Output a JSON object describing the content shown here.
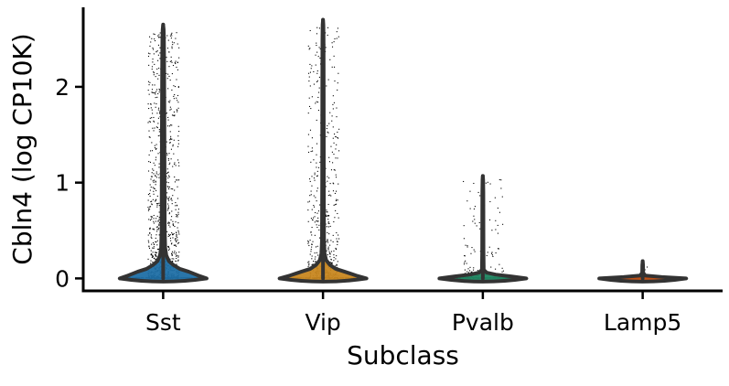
{
  "chart_data": {
    "type": "violin",
    "title": "",
    "xlabel": "Subclass",
    "ylabel": "Cbln4 (log CP10K)",
    "ylim": [
      -0.13,
      2.83
    ],
    "yticks": [
      0,
      1,
      2
    ],
    "grid": false,
    "legend": "none",
    "categories": [
      "Sst",
      "Vip",
      "Pvalb",
      "Lamp5"
    ],
    "colors": [
      "#1f6fa5",
      "#c88720",
      "#1e8560",
      "#c24d10"
    ],
    "series": [
      {
        "category": "Sst",
        "max": 2.65,
        "profile": [
          [
            0,
            0.68
          ],
          [
            0.03,
            0.55
          ],
          [
            0.07,
            0.4
          ],
          [
            0.1,
            0.26
          ],
          [
            0.14,
            0.16
          ],
          [
            0.18,
            0.09
          ],
          [
            0.24,
            0.05
          ],
          [
            0.32,
            0.032
          ],
          [
            0.5,
            0.025
          ],
          [
            1.0,
            0.022
          ],
          [
            1.5,
            0.02
          ],
          [
            2.0,
            0.017
          ],
          [
            2.3,
            0.015
          ],
          [
            2.5,
            0.012
          ],
          [
            2.6,
            0.008
          ],
          [
            2.65,
            0.0
          ]
        ]
      },
      {
        "category": "Vip",
        "max": 2.7,
        "profile": [
          [
            0,
            0.68
          ],
          [
            0.03,
            0.52
          ],
          [
            0.07,
            0.34
          ],
          [
            0.1,
            0.2
          ],
          [
            0.14,
            0.11
          ],
          [
            0.19,
            0.05
          ],
          [
            0.26,
            0.025
          ],
          [
            0.4,
            0.016
          ],
          [
            1.0,
            0.013
          ],
          [
            1.5,
            0.012
          ],
          [
            2.0,
            0.011
          ],
          [
            2.5,
            0.009
          ],
          [
            2.65,
            0.006
          ],
          [
            2.7,
            0.0
          ]
        ]
      },
      {
        "category": "Pvalb",
        "max": 1.07,
        "profile": [
          [
            0,
            0.68
          ],
          [
            0.02,
            0.45
          ],
          [
            0.04,
            0.2
          ],
          [
            0.06,
            0.06
          ],
          [
            0.09,
            0.014
          ],
          [
            0.3,
            0.01
          ],
          [
            0.6,
            0.009
          ],
          [
            0.9,
            0.008
          ],
          [
            1.03,
            0.005
          ],
          [
            1.07,
            0.0
          ]
        ]
      },
      {
        "category": "Lamp5",
        "max": 0.18,
        "profile": [
          [
            0,
            0.68
          ],
          [
            0.015,
            0.3
          ],
          [
            0.03,
            0.04
          ],
          [
            0.06,
            0.008
          ],
          [
            0.14,
            0.006
          ],
          [
            0.18,
            0.0
          ]
        ]
      }
    ]
  }
}
